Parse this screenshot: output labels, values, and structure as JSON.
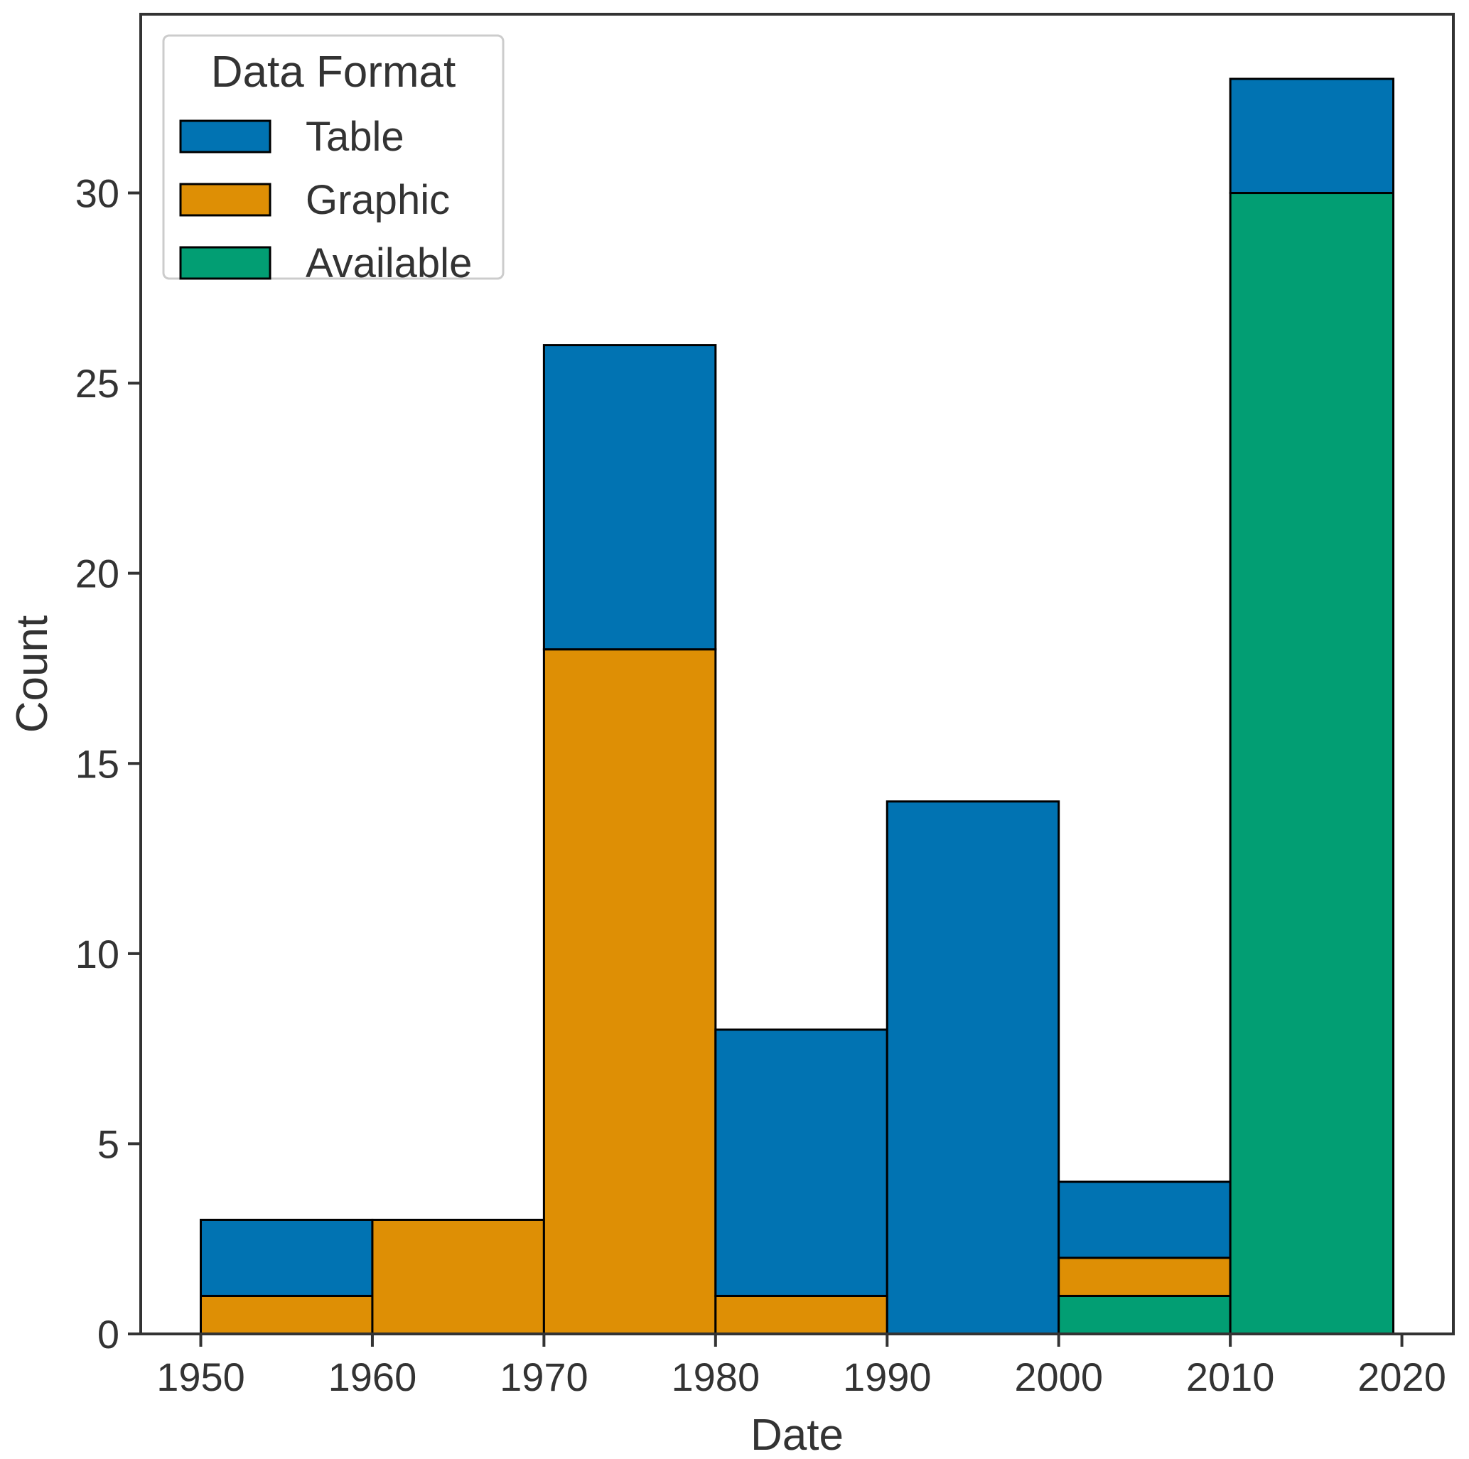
{
  "chart_data": {
    "type": "bar",
    "stacked": true,
    "bin_edges": [
      1950,
      1960,
      1970,
      1980,
      1990,
      2000,
      2010,
      2019.5
    ],
    "series": [
      {
        "name": "Available",
        "values": [
          0,
          0,
          0,
          0,
          0,
          1,
          30
        ]
      },
      {
        "name": "Graphic",
        "values": [
          1,
          3,
          18,
          1,
          0,
          1,
          0
        ]
      },
      {
        "name": "Table",
        "values": [
          2,
          0,
          8,
          7,
          14,
          2,
          3
        ]
      }
    ],
    "colors": {
      "Table": "#0173b2",
      "Graphic": "#de8f05",
      "Available": "#029e73"
    },
    "xlabel": "Date",
    "ylabel": "Count",
    "xlim": [
      1946.5,
      2023
    ],
    "ylim": [
      0,
      34.7
    ],
    "xticks": [
      1950,
      1960,
      1970,
      1980,
      1990,
      2000,
      2010,
      2020
    ],
    "yticks": [
      0,
      5,
      10,
      15,
      20,
      25,
      30
    ],
    "grid": false,
    "legend": {
      "title": "Data Format",
      "placement": "top-left",
      "entries": [
        "Table",
        "Graphic",
        "Available"
      ]
    }
  }
}
